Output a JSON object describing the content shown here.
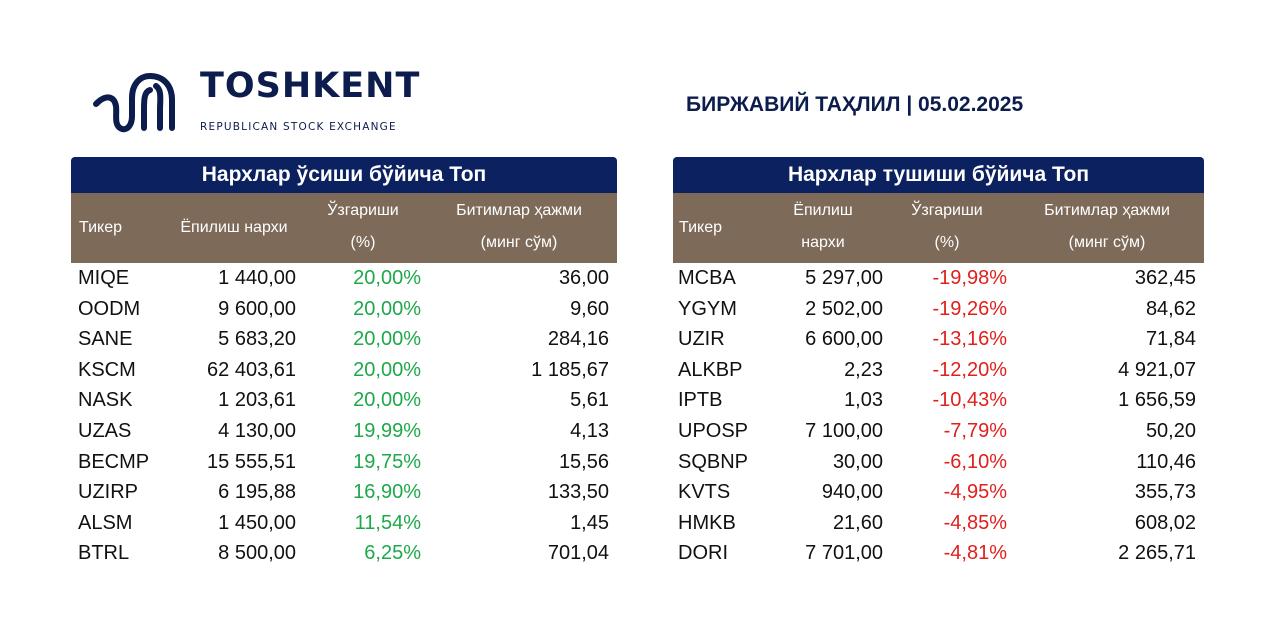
{
  "header": {
    "logo_name": "TOSHKENT",
    "logo_sub": "REPUBLICAN STOCK EXCHANGE",
    "report_title": "БИРЖАВИЙ ТАҲЛИЛ | 05.02.2025"
  },
  "gainers": {
    "title": "Нархлар ўсиши бўйича Топ",
    "cols": {
      "ticker": "Тикер",
      "price": "Ёпилиш нархи",
      "change_1": "Ўзгариши",
      "change_2": "(%)",
      "volume_1": "Битимлар ҳажми",
      "volume_2": "(минг сўм)"
    },
    "rows": [
      {
        "ticker": "MIQE",
        "price": "1 440,00",
        "change": "20,00%",
        "volume": "36,00"
      },
      {
        "ticker": "OODM",
        "price": "9 600,00",
        "change": "20,00%",
        "volume": "9,60"
      },
      {
        "ticker": "SANE",
        "price": "5 683,20",
        "change": "20,00%",
        "volume": "284,16"
      },
      {
        "ticker": "KSCM",
        "price": "62 403,61",
        "change": "20,00%",
        "volume": "1 185,67"
      },
      {
        "ticker": "NASK",
        "price": "1 203,61",
        "change": "20,00%",
        "volume": "5,61"
      },
      {
        "ticker": "UZAS",
        "price": "4 130,00",
        "change": "19,99%",
        "volume": "4,13"
      },
      {
        "ticker": "BECMP",
        "price": "15 555,51",
        "change": "19,75%",
        "volume": "15,56"
      },
      {
        "ticker": "UZIRP",
        "price": "6 195,88",
        "change": "16,90%",
        "volume": "133,50"
      },
      {
        "ticker": "ALSM",
        "price": "1 450,00",
        "change": "11,54%",
        "volume": "1,45"
      },
      {
        "ticker": "BTRL",
        "price": "8 500,00",
        "change": "6,25%",
        "volume": "701,04"
      }
    ]
  },
  "losers": {
    "title": "Нархлар тушиши бўйича Топ",
    "cols": {
      "ticker": "Тикер",
      "price_1": "Ёпилиш",
      "price_2": "нархи",
      "change_1": "Ўзгариши",
      "change_2": "(%)",
      "volume_1": "Битимлар ҳажми",
      "volume_2": "(минг сўм)"
    },
    "rows": [
      {
        "ticker": "MCBA",
        "price": "5 297,00",
        "change": "-19,98%",
        "volume": "362,45"
      },
      {
        "ticker": "YGYM",
        "price": "2 502,00",
        "change": "-19,26%",
        "volume": "84,62"
      },
      {
        "ticker": "UZIR",
        "price": "6 600,00",
        "change": "-13,16%",
        "volume": "71,84"
      },
      {
        "ticker": "ALKBP",
        "price": "2,23",
        "change": "-12,20%",
        "volume": "4 921,07"
      },
      {
        "ticker": "IPTB",
        "price": "1,03",
        "change": "-10,43%",
        "volume": "1 656,59"
      },
      {
        "ticker": "UPOSP",
        "price": "7 100,00",
        "change": "-7,79%",
        "volume": "50,20"
      },
      {
        "ticker": "SQBNP",
        "price": "30,00",
        "change": "-6,10%",
        "volume": "110,46"
      },
      {
        "ticker": "KVTS",
        "price": "940,00",
        "change": "-4,95%",
        "volume": "355,73"
      },
      {
        "ticker": "HMKB",
        "price": "21,60",
        "change": "-4,85%",
        "volume": "608,02"
      },
      {
        "ticker": "DORI",
        "price": "7 701,00",
        "change": "-4,81%",
        "volume": "2 265,71"
      }
    ]
  },
  "colors": {
    "navy": "#0b2160",
    "header_brown": "#7d6a59",
    "positive": "#1ea84b",
    "negative": "#e0201d"
  }
}
